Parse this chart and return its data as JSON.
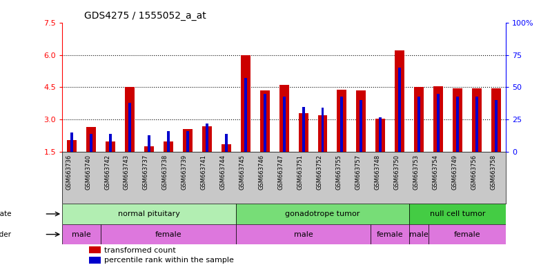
{
  "title": "GDS4275 / 1555052_a_at",
  "samples": [
    "GSM663736",
    "GSM663740",
    "GSM663742",
    "GSM663743",
    "GSM663737",
    "GSM663738",
    "GSM663739",
    "GSM663741",
    "GSM663744",
    "GSM663745",
    "GSM663746",
    "GSM663747",
    "GSM663751",
    "GSM663752",
    "GSM663755",
    "GSM663757",
    "GSM663748",
    "GSM663750",
    "GSM663753",
    "GSM663754",
    "GSM663749",
    "GSM663756",
    "GSM663758"
  ],
  "transformed_count": [
    2.05,
    2.65,
    2.0,
    4.5,
    1.75,
    2.0,
    2.55,
    2.7,
    1.85,
    6.0,
    4.35,
    4.6,
    3.3,
    3.2,
    4.4,
    4.35,
    3.05,
    6.2,
    4.5,
    4.55,
    4.45,
    4.45,
    4.45
  ],
  "percentile_rank": [
    15,
    14,
    14,
    38,
    13,
    16,
    16,
    22,
    14,
    57,
    45,
    43,
    35,
    34,
    43,
    40,
    27,
    65,
    43,
    45,
    43,
    43,
    40
  ],
  "ylim_left": [
    1.5,
    7.5
  ],
  "ylim_right": [
    0,
    100
  ],
  "yticks_left": [
    1.5,
    3.0,
    4.5,
    6.0,
    7.5
  ],
  "yticks_right": [
    0,
    25,
    50,
    75,
    100
  ],
  "bar_color": "#cc0000",
  "percentile_color": "#0000cc",
  "bg_color": "#ffffff",
  "xticklabel_bg": "#c8c8c8",
  "disease_state_colors": [
    "#b2eeb2",
    "#77dd77",
    "#44cc44"
  ],
  "gender_color": "#dd77dd",
  "disease_state_groups": [
    {
      "label": "normal pituitary",
      "start": 0,
      "end": 8
    },
    {
      "label": "gonadotrope tumor",
      "start": 9,
      "end": 17
    },
    {
      "label": "null cell tumor",
      "start": 18,
      "end": 22
    }
  ],
  "gender_groups": [
    {
      "label": "male",
      "start": 0,
      "end": 1
    },
    {
      "label": "female",
      "start": 2,
      "end": 8
    },
    {
      "label": "male",
      "start": 9,
      "end": 15
    },
    {
      "label": "female",
      "start": 16,
      "end": 17
    },
    {
      "label": "male",
      "start": 18,
      "end": 18
    },
    {
      "label": "female",
      "start": 19,
      "end": 22
    }
  ],
  "legend_labels": [
    "transformed count",
    "percentile rank within the sample"
  ],
  "legend_colors": [
    "#cc0000",
    "#0000cc"
  ]
}
